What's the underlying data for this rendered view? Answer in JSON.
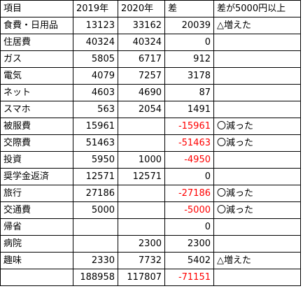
{
  "sheet": {
    "header": [
      "項目",
      "2019年",
      "2020年",
      "差",
      "差が5000円以上"
    ],
    "rows": [
      [
        "食費・日用品",
        "13123",
        "33162",
        "20039",
        "△増えた"
      ],
      [
        "住居費",
        "40324",
        "40324",
        "0",
        ""
      ],
      [
        "ガス",
        "5805",
        "6717",
        "912",
        ""
      ],
      [
        "電気",
        "4079",
        "7257",
        "3178",
        ""
      ],
      [
        "ネット",
        "4603",
        "4690",
        "87",
        ""
      ],
      [
        "スマホ",
        "563",
        "2054",
        "1491",
        ""
      ],
      [
        "被服費",
        "15961",
        "",
        "-15961",
        "〇減った"
      ],
      [
        "交際費",
        "51463",
        "",
        "-51463",
        "〇減った"
      ],
      [
        "投資",
        "5950",
        "1000",
        "-4950",
        ""
      ],
      [
        "奨学金返済",
        "12571",
        "12571",
        "0",
        ""
      ],
      [
        "旅行",
        "27186",
        "",
        "-27186",
        "〇減った"
      ],
      [
        "交通費",
        "5000",
        "",
        "-5000",
        "〇減った"
      ],
      [
        "帰省",
        "",
        "",
        "0",
        ""
      ],
      [
        "病院",
        "",
        "2300",
        "2300",
        ""
      ],
      [
        "趣味",
        "2330",
        "7732",
        "5402",
        "△増えた"
      ],
      [
        "",
        "188958",
        "117807",
        "-71151",
        ""
      ]
    ],
    "negative_color": "#ff0000"
  }
}
